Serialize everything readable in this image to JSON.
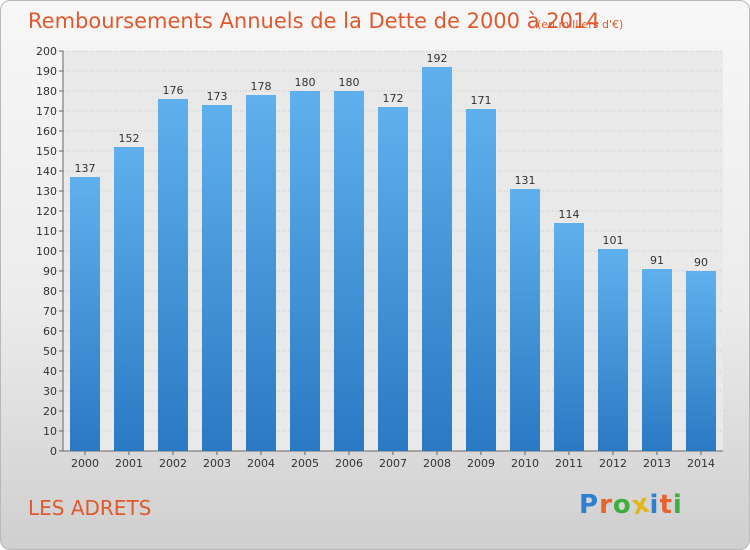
{
  "header": {
    "title": "Remboursements Annuels de la Dette de 2000 à 2014",
    "subtitle": "(en milliers d'€)"
  },
  "footer": {
    "commune": "LES ADRETS",
    "logo_text": "Proxiti",
    "logo_letters": [
      {
        "char": "P",
        "color": "#2f7fd1"
      },
      {
        "char": "r",
        "color": "#e8622c"
      },
      {
        "char": "o",
        "color": "#3fae3f"
      },
      {
        "char": "x",
        "color": "#e3b51d"
      },
      {
        "char": "i",
        "color": "#2f7fd1"
      },
      {
        "char": "t",
        "color": "#e8622c"
      },
      {
        "char": "i",
        "color": "#3fae3f"
      }
    ]
  },
  "colors": {
    "accent": "#e0592c",
    "bar_top": "#5eb1ec",
    "bar_bottom": "#2a79c4"
  },
  "chart_data": {
    "type": "bar",
    "categories": [
      "2000",
      "2001",
      "2002",
      "2003",
      "2004",
      "2005",
      "2006",
      "2007",
      "2008",
      "2009",
      "2010",
      "2011",
      "2012",
      "2013",
      "2014"
    ],
    "values": [
      137,
      152,
      176,
      173,
      178,
      180,
      180,
      172,
      192,
      171,
      131,
      114,
      101,
      91,
      90
    ],
    "ylim": [
      0,
      200
    ],
    "ytick_step": 10,
    "grid": true,
    "data_labels": true
  }
}
